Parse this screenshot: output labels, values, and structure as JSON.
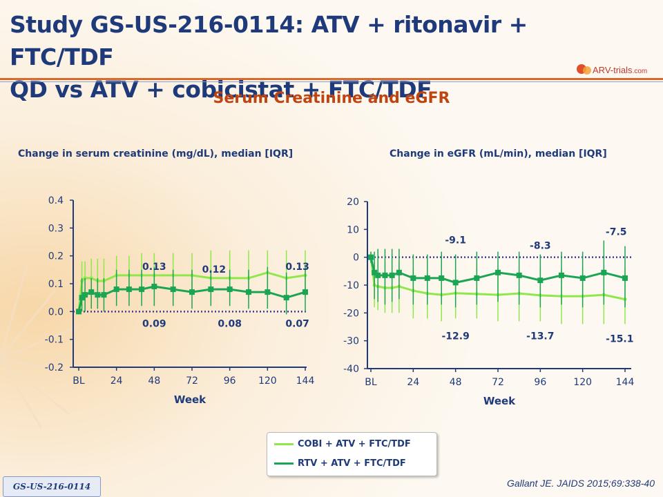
{
  "title_line1": "Study GS-US-216-0114: ATV + ritonavir + FTC/TDF",
  "title_line2": "QD vs ATV + cobicistat + FTC/TDF",
  "logo": {
    "main": "ARV-trials",
    "suffix": ".com"
  },
  "subtitle": "Serum Creatinine and eGFR",
  "study_tag": "GS-US-216-0114",
  "citation": "Gallant JE. JAIDS 2015;69:338-40",
  "colors": {
    "cobi": "#8ee84a",
    "rtv": "#1aa554",
    "title": "#1f3a7a",
    "subtitle": "#c0440f"
  },
  "legend": [
    {
      "label": "COBI + ATV + FTC/TDF",
      "color": "#8ee84a"
    },
    {
      "label": "RTV + ATV + FTC/TDF",
      "color": "#1aa554"
    }
  ],
  "chart_data": [
    {
      "type": "line",
      "title": "Change in serum creatinine (mg/dL), median [IQR]",
      "xlabel": "Week",
      "ylabel": "",
      "xlim": [
        0,
        144
      ],
      "ylim": [
        -0.2,
        0.4
      ],
      "xticks": [
        0,
        24,
        48,
        72,
        96,
        120,
        144
      ],
      "xtick_labels": [
        "BL",
        "24",
        "48",
        "72",
        "96",
        "120",
        "144"
      ],
      "yticks": [
        -0.2,
        -0.1,
        0.0,
        0.1,
        0.2,
        0.3,
        0.4
      ],
      "ytick_labels": [
        "-0.2",
        "-0.1",
        "0.0",
        "0.1",
        "0.2",
        "0.3",
        "0.4"
      ],
      "reference_line": 0,
      "series": [
        {
          "name": "COBI + ATV + FTC/TDF",
          "x": [
            0,
            2,
            4,
            8,
            12,
            16,
            24,
            32,
            40,
            48,
            60,
            72,
            84,
            96,
            108,
            120,
            132,
            144
          ],
          "y": [
            0.0,
            0.11,
            0.12,
            0.12,
            0.11,
            0.11,
            0.13,
            0.13,
            0.13,
            0.13,
            0.13,
            0.13,
            0.12,
            0.12,
            0.12,
            0.14,
            0.12,
            0.13
          ],
          "low": [
            -0.01,
            0.02,
            0.04,
            0.05,
            0.05,
            0.05,
            0.06,
            0.06,
            0.06,
            0.06,
            0.06,
            0.06,
            0.05,
            0.05,
            0.05,
            0.06,
            0.05,
            0.05
          ],
          "high": [
            0.02,
            0.18,
            0.18,
            0.19,
            0.19,
            0.19,
            0.2,
            0.2,
            0.21,
            0.21,
            0.21,
            0.21,
            0.22,
            0.22,
            0.22,
            0.22,
            0.22,
            0.22
          ]
        },
        {
          "name": "RTV + ATV + FTC/TDF",
          "x": [
            0,
            2,
            4,
            8,
            12,
            16,
            24,
            32,
            40,
            48,
            60,
            72,
            84,
            96,
            108,
            120,
            132,
            144
          ],
          "y": [
            0.0,
            0.05,
            0.06,
            0.07,
            0.06,
            0.06,
            0.08,
            0.08,
            0.08,
            0.09,
            0.08,
            0.07,
            0.08,
            0.08,
            0.07,
            0.07,
            0.05,
            0.07
          ],
          "low": [
            -0.01,
            0.0,
            0.0,
            0.01,
            0.01,
            0.0,
            0.02,
            0.02,
            0.02,
            0.02,
            0.02,
            0.01,
            0.02,
            0.02,
            0.01,
            0.01,
            -0.01,
            0.0
          ],
          "high": [
            0.01,
            0.12,
            0.12,
            0.12,
            0.12,
            0.12,
            0.15,
            0.15,
            0.15,
            0.16,
            0.15,
            0.15,
            0.15,
            0.15,
            0.15,
            0.16,
            0.14,
            0.16
          ]
        }
      ],
      "annotations": [
        {
          "x": 48,
          "y": 0.13,
          "text": "0.13",
          "pos": "above"
        },
        {
          "x": 86,
          "y": 0.12,
          "text": "0.12",
          "pos": "above"
        },
        {
          "x": 139,
          "y": 0.13,
          "text": "0.13",
          "pos": "above"
        },
        {
          "x": 48,
          "y": 0.0,
          "text": "0.09",
          "pos": "below"
        },
        {
          "x": 96,
          "y": 0.0,
          "text": "0.08",
          "pos": "below"
        },
        {
          "x": 139,
          "y": 0.0,
          "text": "0.07",
          "pos": "below"
        }
      ]
    },
    {
      "type": "line",
      "title": "Change in eGFR (mL/min), median [IQR]",
      "xlabel": "Week",
      "ylabel": "",
      "xlim": [
        0,
        144
      ],
      "ylim": [
        -40,
        20
      ],
      "xticks": [
        0,
        24,
        48,
        72,
        96,
        120,
        144
      ],
      "xtick_labels": [
        "BL",
        "24",
        "48",
        "72",
        "96",
        "120",
        "144"
      ],
      "yticks": [
        -40,
        -30,
        -20,
        -10,
        0,
        10,
        20
      ],
      "ytick_labels": [
        "-40",
        "-30",
        "-20",
        "-10",
        "0",
        "10",
        "20"
      ],
      "reference_line": 0,
      "series": [
        {
          "name": "COBI + ATV + FTC/TDF",
          "x": [
            0,
            2,
            4,
            8,
            12,
            16,
            24,
            32,
            40,
            48,
            60,
            72,
            84,
            96,
            108,
            120,
            132,
            144
          ],
          "y": [
            0,
            -10,
            -10.5,
            -11,
            -11,
            -10.5,
            -12,
            -13,
            -13.5,
            -12.9,
            -13.2,
            -13.5,
            -13,
            -13.7,
            -14,
            -14,
            -13.5,
            -15.1
          ],
          "low": [
            -2,
            -18,
            -19,
            -20,
            -20,
            -20,
            -22,
            -22,
            -23,
            -22,
            -22,
            -23,
            -23,
            -23,
            -24,
            -24,
            -24,
            -24
          ],
          "high": [
            2,
            -2,
            -2,
            -2,
            -2,
            -2,
            -4,
            -4,
            -4,
            -4,
            -4,
            -4,
            -4,
            -4,
            -4,
            -4,
            -3,
            -4
          ]
        },
        {
          "name": "RTV + ATV + FTC/TDF",
          "x": [
            0,
            2,
            4,
            8,
            12,
            16,
            24,
            32,
            40,
            48,
            60,
            72,
            84,
            96,
            108,
            120,
            132,
            144
          ],
          "y": [
            0,
            -5.5,
            -6.5,
            -6.5,
            -6.5,
            -5.5,
            -7.5,
            -7.5,
            -7.5,
            -9.1,
            -7.5,
            -5.5,
            -6.5,
            -8.3,
            -6.5,
            -7.5,
            -5.5,
            -7.5
          ],
          "low": [
            -2,
            -15,
            -16,
            -17,
            -16,
            -15,
            -17,
            -17,
            -17,
            -18,
            -17,
            -16,
            -17,
            -18,
            -17,
            -18,
            -17,
            -18
          ],
          "high": [
            2,
            2,
            3,
            3,
            3,
            3,
            1,
            1,
            2,
            1,
            2,
            2,
            2,
            1,
            2,
            2,
            6,
            4
          ]
        }
      ],
      "annotations": [
        {
          "x": 48,
          "y": 3,
          "text": "-9.1",
          "pos": "above"
        },
        {
          "x": 96,
          "y": 1,
          "text": "-8.3",
          "pos": "above"
        },
        {
          "x": 139,
          "y": 6,
          "text": "-7.5",
          "pos": "above"
        },
        {
          "x": 48,
          "y": -24,
          "text": "-12.9",
          "pos": "below"
        },
        {
          "x": 96,
          "y": -24,
          "text": "-13.7",
          "pos": "below"
        },
        {
          "x": 141,
          "y": -25,
          "text": "-15.1",
          "pos": "below"
        }
      ]
    }
  ]
}
